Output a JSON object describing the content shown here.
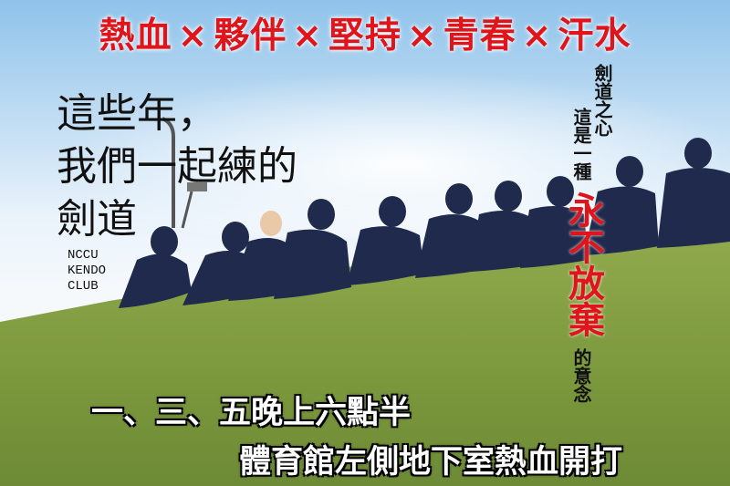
{
  "headline": {
    "words": [
      "熱血",
      "夥伴",
      "堅持",
      "青春",
      "汗水"
    ],
    "separator": "×"
  },
  "handwriting": {
    "lines": [
      "這些年，",
      "我們一起練的",
      "劍道"
    ]
  },
  "club": {
    "lines": [
      "NCCU",
      "KENDO",
      "CLUB"
    ]
  },
  "vertical_text": {
    "col1": "劍道之心",
    "col2_before": "這是一種",
    "col2_highlight": "永不放棄",
    "col2_after": "的意念"
  },
  "schedule": "一、三、五晚上六點半",
  "location": "體育館左側地下室熱血開打",
  "colors": {
    "accent_red": "#e0141b",
    "grass": "#7e9a3e",
    "sky": "#bcdaf2"
  }
}
